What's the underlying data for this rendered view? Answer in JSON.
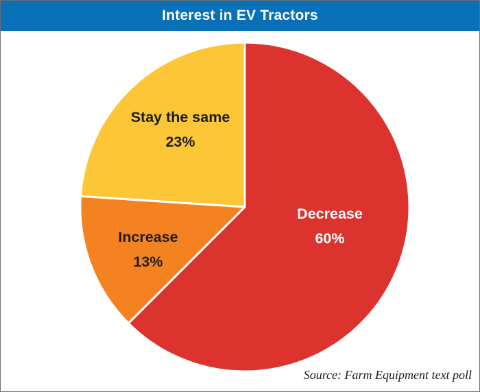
{
  "header": {
    "title": "Interest in EV Tractors",
    "background_color": "#0870b7",
    "text_color": "#ffffff"
  },
  "chart_data": {
    "type": "pie",
    "title": "Interest in EV Tractors",
    "start_angle": "top",
    "direction": "clockwise",
    "slices": [
      {
        "label": "Decrease",
        "value": 60,
        "display_value": "60%",
        "color": "#dc332e",
        "label_color": "#ffffff"
      },
      {
        "label": "Increase",
        "value": 13,
        "display_value": "13%",
        "color": "#f58220",
        "label_color": "#1d1d1b"
      },
      {
        "label": "Stay the same",
        "value": 23,
        "display_value": "23%",
        "color": "#fdc636",
        "label_color": "#1d1d1b"
      }
    ],
    "divider_color": "#ffffff"
  },
  "footer": {
    "source": "Source: Farm Equipment text poll"
  }
}
